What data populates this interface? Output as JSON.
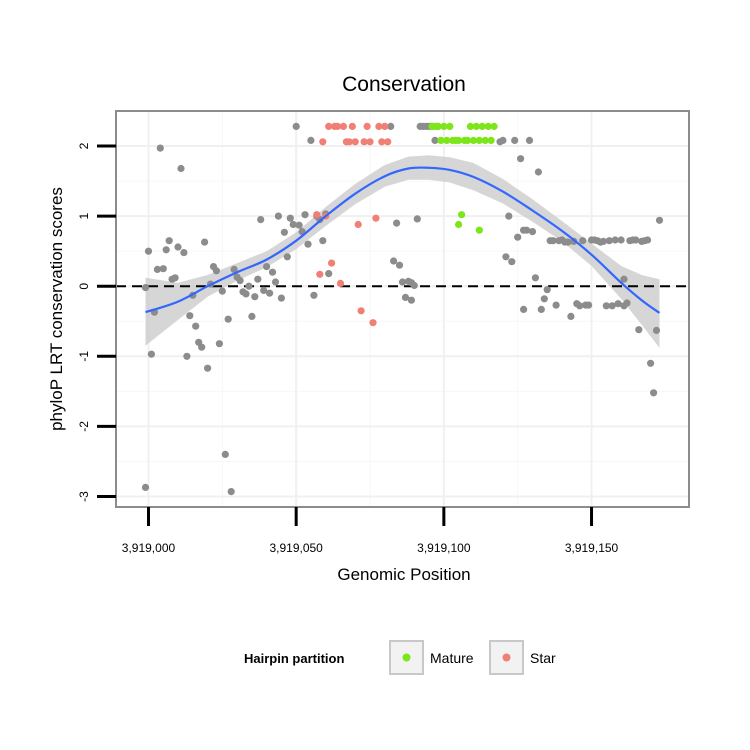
{
  "chart_data": {
    "type": "scatter",
    "title": "Conservation",
    "xlabel": "Genomic Position",
    "ylabel": "phyloP LRT conservation scores",
    "xlim": [
      3918989,
      3919183
    ],
    "ylim": [
      -3.15,
      2.5
    ],
    "x_ticks": [
      {
        "value": 3919000,
        "label": "3,919,000"
      },
      {
        "value": 3919050,
        "label": "3,919,050"
      },
      {
        "value": 3919100,
        "label": "3,919,100"
      },
      {
        "value": 3919150,
        "label": "3,919,150"
      }
    ],
    "y_ticks": [
      {
        "value": -3,
        "label": "-3"
      },
      {
        "value": -2,
        "label": "-2"
      },
      {
        "value": -1,
        "label": "-1"
      },
      {
        "value": 0,
        "label": "0"
      },
      {
        "value": 1,
        "label": "1"
      },
      {
        "value": 2,
        "label": "2"
      }
    ],
    "reference_line": {
      "y": 0,
      "style": "dashed"
    },
    "legend": {
      "title": "Hairpin partition",
      "position": "bottom",
      "entries": [
        {
          "label": "Mature",
          "color": "#7ce61a"
        },
        {
          "label": "Star",
          "color": "#f07f75"
        }
      ]
    },
    "colors": {
      "other": "#8c8c8c",
      "mature": "#7ce61a",
      "star": "#f07f75",
      "smooth_line": "#3366ff",
      "confidence_band": "#cccccc"
    },
    "series": [
      {
        "name": "Other",
        "points": [
          [
            3918999,
            -2.87
          ],
          [
            3918999,
            -0.02
          ],
          [
            3919000,
            0.5
          ],
          [
            3919001,
            -0.97
          ],
          [
            3919002,
            -0.37
          ],
          [
            3919003,
            0.24
          ],
          [
            3919004,
            1.97
          ],
          [
            3919005,
            0.25
          ],
          [
            3919006,
            0.52
          ],
          [
            3919007,
            0.65
          ],
          [
            3919008,
            0.1
          ],
          [
            3919009,
            0.12
          ],
          [
            3919010,
            0.56
          ],
          [
            3919011,
            1.68
          ],
          [
            3919012,
            0.48
          ],
          [
            3919013,
            -1.0
          ],
          [
            3919014,
            -0.42
          ],
          [
            3919015,
            -0.13
          ],
          [
            3919016,
            -0.57
          ],
          [
            3919017,
            -0.8
          ],
          [
            3919018,
            -0.87
          ],
          [
            3919019,
            0.63
          ],
          [
            3919020,
            -1.17
          ],
          [
            3919021,
            0.03
          ],
          [
            3919022,
            0.28
          ],
          [
            3919023,
            0.22
          ],
          [
            3919024,
            -0.82
          ],
          [
            3919025,
            -0.07
          ],
          [
            3919026,
            -2.4
          ],
          [
            3919027,
            -0.47
          ],
          [
            3919028,
            -2.93
          ],
          [
            3919029,
            0.24
          ],
          [
            3919030,
            0.13
          ],
          [
            3919031,
            0.08
          ],
          [
            3919032,
            -0.08
          ],
          [
            3919033,
            -0.11
          ],
          [
            3919034,
            0.0
          ],
          [
            3919035,
            -0.43
          ],
          [
            3919036,
            -0.15
          ],
          [
            3919037,
            0.1
          ],
          [
            3919038,
            0.95
          ],
          [
            3919039,
            -0.06
          ],
          [
            3919040,
            0.28
          ],
          [
            3919041,
            -0.1
          ],
          [
            3919042,
            0.2
          ],
          [
            3919043,
            0.06
          ],
          [
            3919044,
            1.0
          ],
          [
            3919045,
            -0.17
          ],
          [
            3919046,
            0.77
          ],
          [
            3919047,
            0.42
          ],
          [
            3919048,
            0.97
          ],
          [
            3919049,
            0.88
          ],
          [
            3919050,
            2.28
          ],
          [
            3919051,
            0.87
          ],
          [
            3919052,
            0.78
          ],
          [
            3919053,
            1.02
          ],
          [
            3919054,
            0.6
          ],
          [
            3919055,
            2.08
          ],
          [
            3919056,
            -0.13
          ],
          [
            3919057,
            1.0
          ],
          [
            3919058,
            0.95
          ],
          [
            3919059,
            0.65
          ],
          [
            3919060,
            1.03
          ],
          [
            3919061,
            0.18
          ],
          [
            3919082,
            2.28
          ],
          [
            3919083,
            0.36
          ],
          [
            3919084,
            0.9
          ],
          [
            3919085,
            0.3
          ],
          [
            3919086,
            0.06
          ],
          [
            3919087,
            -0.16
          ],
          [
            3919088,
            0.07
          ],
          [
            3919089,
            0.05
          ],
          [
            3919089,
            -0.2
          ],
          [
            3919090,
            0.01
          ],
          [
            3919091,
            0.96
          ],
          [
            3919092,
            2.28
          ],
          [
            3919093,
            2.28
          ],
          [
            3919094,
            2.28
          ],
          [
            3919095,
            2.28
          ],
          [
            3919096,
            2.28
          ],
          [
            3919097,
            2.08
          ],
          [
            3919098,
            2.28
          ],
          [
            3919119,
            2.06
          ],
          [
            3919120,
            2.08
          ],
          [
            3919121,
            0.42
          ],
          [
            3919122,
            1.0
          ],
          [
            3919123,
            0.35
          ],
          [
            3919124,
            2.08
          ],
          [
            3919125,
            0.7
          ],
          [
            3919126,
            1.82
          ],
          [
            3919127,
            -0.33
          ],
          [
            3919127,
            0.8
          ],
          [
            3919128,
            0.8
          ],
          [
            3919129,
            2.08
          ],
          [
            3919130,
            0.78
          ],
          [
            3919131,
            0.12
          ],
          [
            3919132,
            1.63
          ],
          [
            3919133,
            -0.33
          ],
          [
            3919134,
            -0.18
          ],
          [
            3919135,
            -0.05
          ],
          [
            3919136,
            0.65
          ],
          [
            3919137,
            0.65
          ],
          [
            3919138,
            -0.27
          ],
          [
            3919139,
            0.65
          ],
          [
            3919140,
            0.66
          ],
          [
            3919141,
            0.63
          ],
          [
            3919142,
            0.63
          ],
          [
            3919143,
            -0.43
          ],
          [
            3919144,
            0.64
          ],
          [
            3919145,
            -0.25
          ],
          [
            3919146,
            -0.28
          ],
          [
            3919147,
            0.65
          ],
          [
            3919148,
            -0.27
          ],
          [
            3919149,
            -0.27
          ],
          [
            3919150,
            0.66
          ],
          [
            3919151,
            0.66
          ],
          [
            3919152,
            0.65
          ],
          [
            3919153,
            0.63
          ],
          [
            3919154,
            0.64
          ],
          [
            3919155,
            -0.28
          ],
          [
            3919156,
            0.65
          ],
          [
            3919157,
            -0.28
          ],
          [
            3919158,
            0.66
          ],
          [
            3919159,
            -0.25
          ],
          [
            3919160,
            0.66
          ],
          [
            3919161,
            0.1
          ],
          [
            3919161,
            -0.28
          ],
          [
            3919162,
            -0.24
          ],
          [
            3919163,
            0.65
          ],
          [
            3919164,
            0.66
          ],
          [
            3919165,
            0.66
          ],
          [
            3919166,
            -0.62
          ],
          [
            3919167,
            0.64
          ],
          [
            3919168,
            0.65
          ],
          [
            3919169,
            0.66
          ],
          [
            3919170,
            -1.1
          ],
          [
            3919171,
            -1.52
          ],
          [
            3919172,
            -0.63
          ],
          [
            3919173,
            0.94
          ]
        ]
      },
      {
        "name": "Mature",
        "points": [
          [
            3919096,
            2.28
          ],
          [
            3919097,
            2.28
          ],
          [
            3919098,
            2.28
          ],
          [
            3919099,
            2.08
          ],
          [
            3919100,
            2.28
          ],
          [
            3919101,
            2.08
          ],
          [
            3919102,
            2.28
          ],
          [
            3919103,
            2.08
          ],
          [
            3919104,
            2.08
          ],
          [
            3919105,
            2.08
          ],
          [
            3919105,
            0.88
          ],
          [
            3919106,
            1.02
          ],
          [
            3919107,
            2.08
          ],
          [
            3919108,
            2.08
          ],
          [
            3919109,
            2.28
          ],
          [
            3919110,
            2.08
          ],
          [
            3919111,
            2.28
          ],
          [
            3919112,
            0.8
          ],
          [
            3919112,
            2.08
          ],
          [
            3919113,
            2.28
          ],
          [
            3919114,
            2.08
          ],
          [
            3919115,
            2.28
          ],
          [
            3919116,
            2.08
          ],
          [
            3919117,
            2.28
          ]
        ]
      },
      {
        "name": "Star",
        "points": [
          [
            3919057,
            1.02
          ],
          [
            3919058,
            0.17
          ],
          [
            3919059,
            2.06
          ],
          [
            3919060,
            1.0
          ],
          [
            3919061,
            2.28
          ],
          [
            3919062,
            0.33
          ],
          [
            3919063,
            2.28
          ],
          [
            3919064,
            2.28
          ],
          [
            3919065,
            0.04
          ],
          [
            3919066,
            2.28
          ],
          [
            3919067,
            2.06
          ],
          [
            3919068,
            2.06
          ],
          [
            3919069,
            2.28
          ],
          [
            3919070,
            2.06
          ],
          [
            3919071,
            0.88
          ],
          [
            3919072,
            -0.35
          ],
          [
            3919073,
            2.06
          ],
          [
            3919074,
            2.28
          ],
          [
            3919075,
            2.06
          ],
          [
            3919076,
            -0.52
          ],
          [
            3919077,
            0.97
          ],
          [
            3919078,
            2.28
          ],
          [
            3919079,
            2.06
          ],
          [
            3919080,
            2.28
          ],
          [
            3919081,
            2.06
          ]
        ]
      }
    ],
    "smooth": {
      "x": [
        3918999,
        3919010,
        3919020,
        3919030,
        3919040,
        3919050,
        3919060,
        3919070,
        3919080,
        3919088,
        3919095,
        3919102,
        3919110,
        3919120,
        3919130,
        3919140,
        3919150,
        3919160,
        3919167,
        3919173
      ],
      "y": [
        -0.37,
        -0.22,
        0.0,
        0.2,
        0.38,
        0.65,
        1.0,
        1.32,
        1.57,
        1.68,
        1.69,
        1.66,
        1.56,
        1.35,
        1.08,
        0.79,
        0.45,
        0.05,
        -0.2,
        -0.38
      ],
      "lower": [
        -0.85,
        -0.48,
        -0.15,
        0.08,
        0.27,
        0.53,
        0.86,
        1.17,
        1.42,
        1.52,
        1.52,
        1.48,
        1.37,
        1.18,
        0.92,
        0.64,
        0.29,
        -0.18,
        -0.55,
        -0.88
      ],
      "upper": [
        0.12,
        0.05,
        0.16,
        0.33,
        0.5,
        0.77,
        1.13,
        1.46,
        1.73,
        1.85,
        1.87,
        1.84,
        1.76,
        1.53,
        1.24,
        0.93,
        0.61,
        0.29,
        0.16,
        0.1
      ]
    }
  }
}
